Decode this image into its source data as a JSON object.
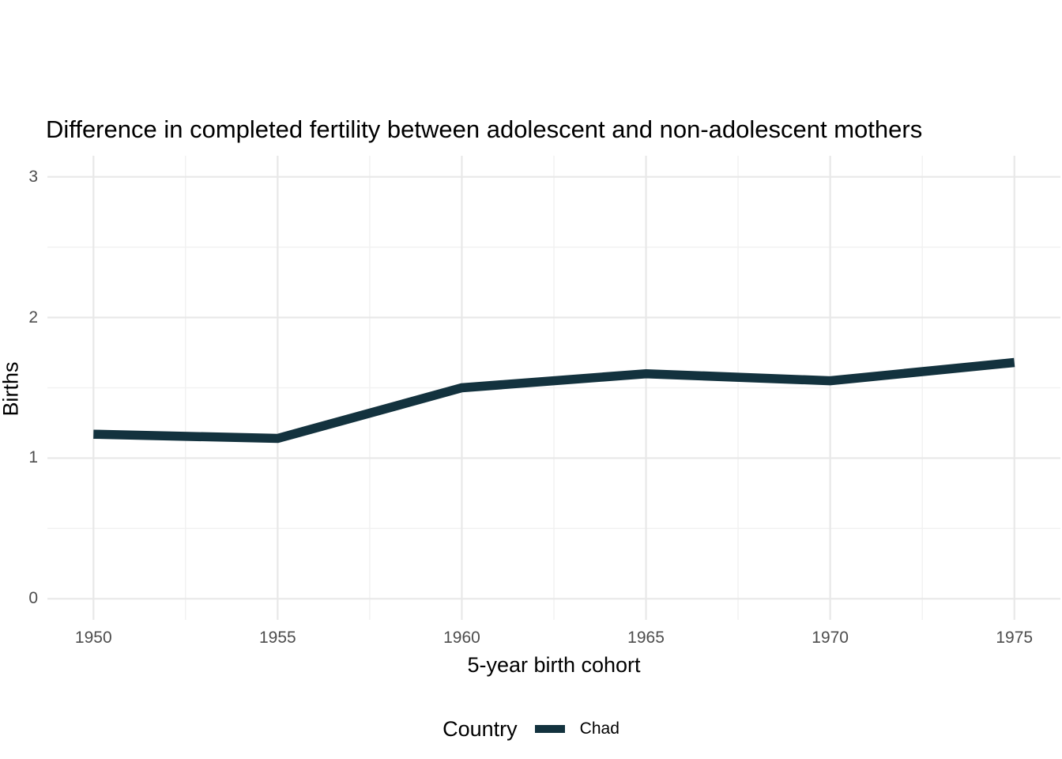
{
  "chart_data": {
    "type": "line",
    "title": "Difference in completed fertility between adolescent and non-adolescent mothers",
    "xlabel": "5-year birth cohort",
    "ylabel": "Births",
    "legend_title": "Country",
    "legend_position": "bottom",
    "grid": true,
    "x": [
      1950,
      1955,
      1960,
      1965,
      1970,
      1975
    ],
    "series": [
      {
        "name": "Chad",
        "color": "#13323E",
        "values": [
          1.17,
          1.14,
          1.5,
          1.6,
          1.55,
          1.68
        ]
      }
    ],
    "xlim": [
      1948.75,
      1976.25
    ],
    "ylim": [
      -0.15,
      3.15
    ],
    "x_ticks": [
      1950,
      1955,
      1960,
      1965,
      1970,
      1975
    ],
    "x_minor_ticks": [
      1952.5,
      1957.5,
      1962.5,
      1967.5,
      1972.5
    ],
    "y_ticks": [
      0,
      1,
      2,
      3
    ],
    "y_minor_ticks": [
      0.5,
      1.5,
      2.5
    ]
  },
  "colors": {
    "line": "#13323E",
    "grid_major": "#E8E8E8",
    "grid_minor": "#F1F1F1",
    "tick_label": "#4D4D4D",
    "title_text": "#000000",
    "background": "#FFFFFF"
  }
}
